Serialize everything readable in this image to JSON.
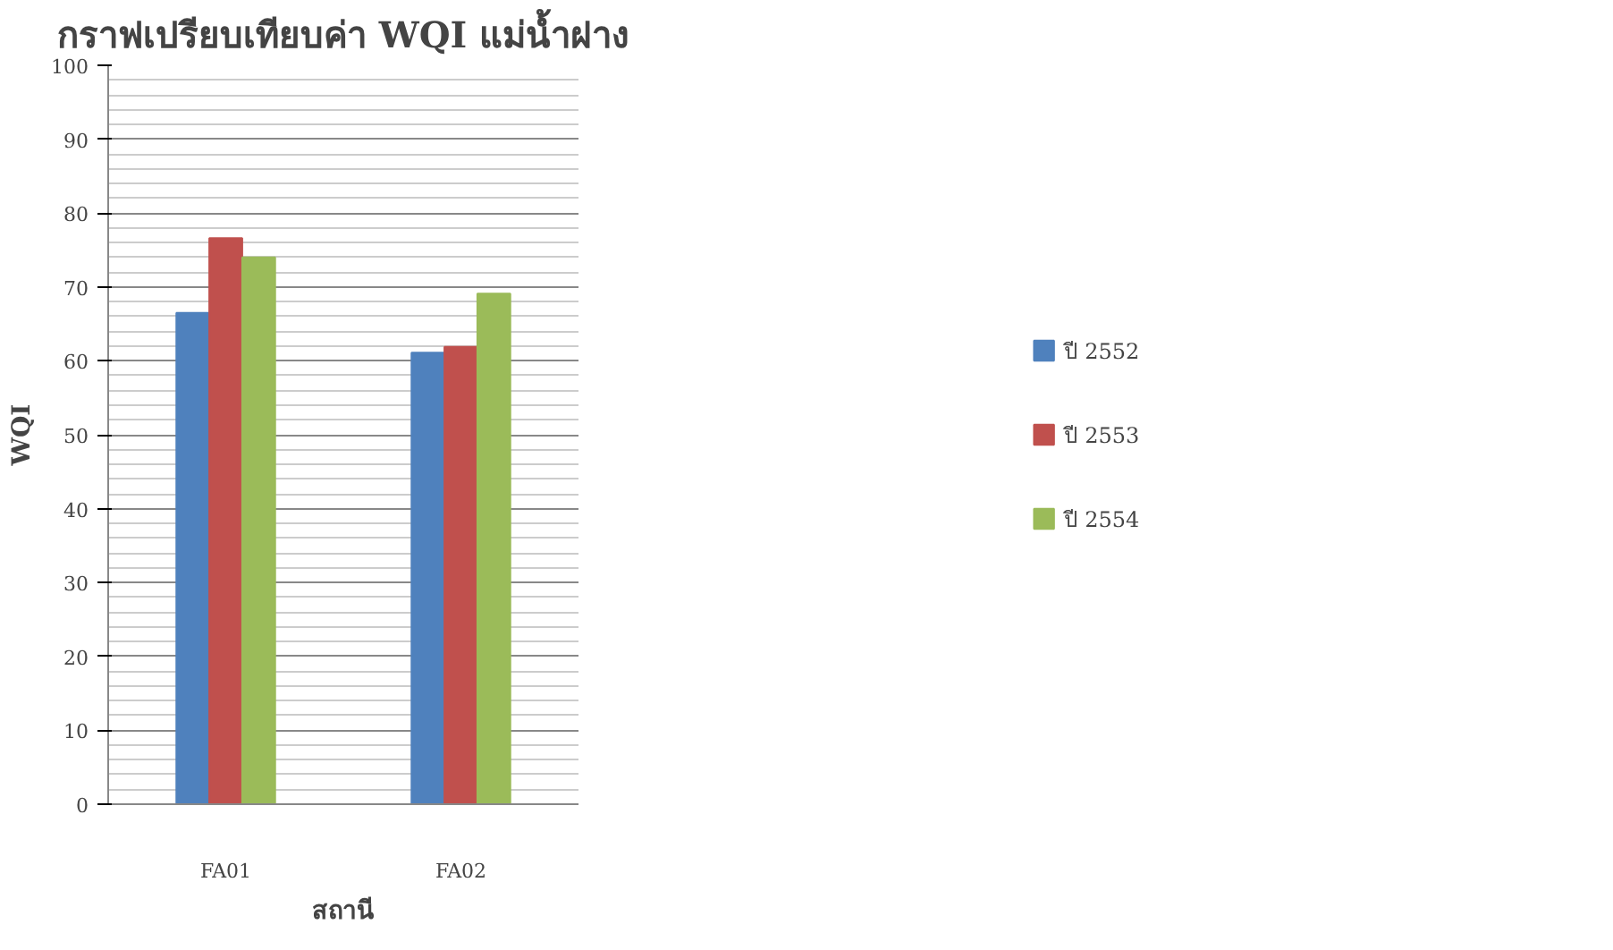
{
  "chart_data": {
    "type": "bar",
    "title": "กราฟเปรียบเทียบค่า WQI แม่น้ำฝาง",
    "xlabel": "สถานี",
    "ylabel": "WQI",
    "categories": [
      "FA01",
      "FA02"
    ],
    "series": [
      {
        "name": "ปี 2552",
        "color": "#4f81bd",
        "values": [
          66.5,
          61.1
        ]
      },
      {
        "name": "ปี 2553",
        "color": "#c0504d",
        "values": [
          76.6,
          61.9
        ]
      },
      {
        "name": "ปี 2554",
        "color": "#9bbb59",
        "values": [
          74.0,
          69.1
        ]
      }
    ],
    "ylim": [
      0,
      100
    ],
    "yticks": [
      0,
      10,
      20,
      30,
      40,
      50,
      60,
      70,
      80,
      90,
      100
    ],
    "grid": "y",
    "legend": "right"
  }
}
